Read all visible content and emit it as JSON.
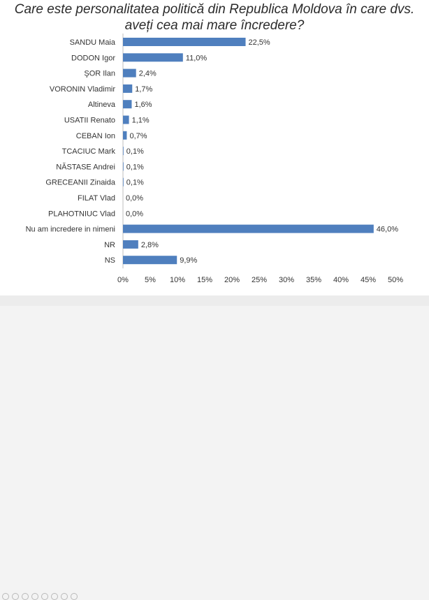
{
  "chart_data": {
    "type": "bar",
    "orientation": "horizontal",
    "title_line1": "Care este personalitatea politică din Republica Moldova în care dvs.",
    "title_line2": "aveți cea mai mare încredere?",
    "categories": [
      "SANDU Maia",
      "DODON Igor",
      "ŞOR Ilan",
      "VORONIN Vladimir",
      "Altineva",
      "USATII Renato",
      "CEBAN Ion",
      "TCACIUC Mark",
      "NĂSTASE Andrei",
      "GRECEANII Zinaida",
      "FILAT Vlad",
      "PLAHOTNIUC Vlad",
      "Nu am incredere in nimeni",
      "NR",
      "NS"
    ],
    "values": [
      22.5,
      11.0,
      2.4,
      1.7,
      1.6,
      1.1,
      0.7,
      0.1,
      0.1,
      0.1,
      0.0,
      0.0,
      46.0,
      2.8,
      9.9
    ],
    "data_labels": [
      "22,5%",
      "11,0%",
      "2,4%",
      "1,7%",
      "1,6%",
      "1,1%",
      "0,7%",
      "0,1%",
      "0,1%",
      "0,1%",
      "0,0%",
      "0,0%",
      "46,0%",
      "2,8%",
      "9,9%"
    ],
    "xlim": [
      0,
      50
    ],
    "x_ticks": [
      "0%",
      "5%",
      "10%",
      "15%",
      "20%",
      "25%",
      "30%",
      "35%",
      "40%",
      "45%",
      "50%"
    ],
    "bar_color": "#4f7fbe",
    "grid": false
  }
}
